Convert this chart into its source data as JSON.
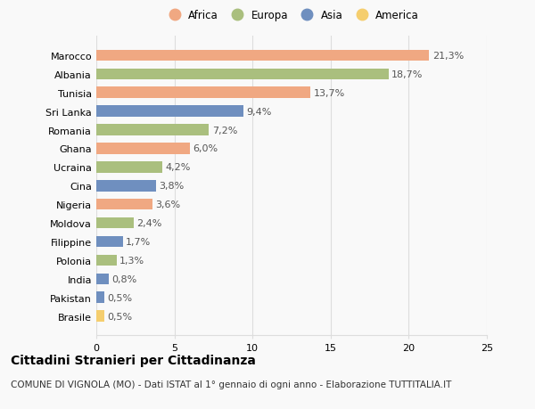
{
  "countries": [
    "Brasile",
    "Pakistan",
    "India",
    "Polonia",
    "Filippine",
    "Moldova",
    "Nigeria",
    "Cina",
    "Ucraina",
    "Ghana",
    "Romania",
    "Sri Lanka",
    "Tunisia",
    "Albania",
    "Marocco"
  ],
  "values": [
    0.5,
    0.5,
    0.8,
    1.3,
    1.7,
    2.4,
    3.6,
    3.8,
    4.2,
    6.0,
    7.2,
    9.4,
    13.7,
    18.7,
    21.3
  ],
  "labels": [
    "0,5%",
    "0,5%",
    "0,8%",
    "1,3%",
    "1,7%",
    "2,4%",
    "3,6%",
    "3,8%",
    "4,2%",
    "6,0%",
    "7,2%",
    "9,4%",
    "13,7%",
    "18,7%",
    "21,3%"
  ],
  "continents": [
    "America",
    "Asia",
    "Asia",
    "Europa",
    "Asia",
    "Europa",
    "Africa",
    "Asia",
    "Europa",
    "Africa",
    "Europa",
    "Asia",
    "Africa",
    "Europa",
    "Africa"
  ],
  "colors": {
    "Africa": "#F0A882",
    "Europa": "#AABF7E",
    "Asia": "#6F8FBF",
    "America": "#F5CE6E"
  },
  "legend_order": [
    "Africa",
    "Europa",
    "Asia",
    "America"
  ],
  "legend_colors": [
    "#F0A882",
    "#AABF7E",
    "#6F8FBF",
    "#F5CE6E"
  ],
  "title": "Cittadini Stranieri per Cittadinanza",
  "subtitle": "COMUNE DI VIGNOLA (MO) - Dati ISTAT al 1° gennaio di ogni anno - Elaborazione TUTTITALIA.IT",
  "xlim": [
    0,
    25
  ],
  "xticks": [
    0,
    5,
    10,
    15,
    20,
    25
  ],
  "background_color": "#f9f9f9",
  "bar_height": 0.6,
  "grid_color": "#dddddd",
  "label_fontsize": 8,
  "tick_fontsize": 8,
  "title_fontsize": 10,
  "subtitle_fontsize": 7.5
}
